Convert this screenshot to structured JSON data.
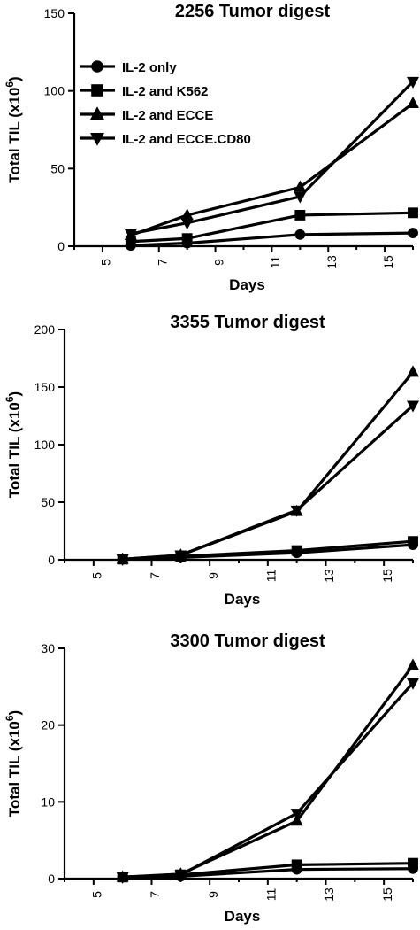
{
  "chart_data": [
    {
      "type": "line",
      "title": "2256 Tumor digest",
      "xlabel": "Days",
      "ylabel": "Total TIL (x10",
      "ylabel_superscript": "6",
      "ylabel_suffix": ")",
      "xlim": [
        4,
        16
      ],
      "ylim": [
        0,
        150
      ],
      "xticks": [
        5,
        7,
        9,
        11,
        13,
        15
      ],
      "yticks": [
        0,
        50,
        100,
        150
      ],
      "legend": "top-left",
      "series": [
        {
          "name": "IL-2 only",
          "marker": "circle",
          "x": [
            6,
            8,
            12,
            16
          ],
          "y": [
            0.5,
            2,
            7.5,
            8.5
          ]
        },
        {
          "name": "IL-2 and K562",
          "marker": "square",
          "x": [
            6,
            8,
            12,
            16
          ],
          "y": [
            3,
            5,
            20,
            21.5
          ]
        },
        {
          "name": "IL-2 and ECCE",
          "marker": "triangle-up",
          "x": [
            6,
            8,
            12,
            16
          ],
          "y": [
            7,
            20,
            38,
            92
          ]
        },
        {
          "name": "IL-2 and ECCE.CD80",
          "marker": "triangle-down",
          "x": [
            6,
            8,
            12,
            16
          ],
          "y": [
            8,
            15,
            32,
            106
          ]
        }
      ]
    },
    {
      "type": "line",
      "title": "3355 Tumor digest",
      "xlabel": "Days",
      "ylabel": "Total TIL (x10",
      "ylabel_superscript": "6",
      "ylabel_suffix": ")",
      "xlim": [
        4,
        16
      ],
      "ylim": [
        0,
        200
      ],
      "xticks": [
        5,
        7,
        9,
        11,
        13,
        15
      ],
      "yticks": [
        0,
        50,
        100,
        150,
        200
      ],
      "series": [
        {
          "name": "IL-2 only",
          "marker": "circle",
          "x": [
            6,
            8,
            12,
            16
          ],
          "y": [
            0.5,
            2,
            6,
            13
          ]
        },
        {
          "name": "IL-2 and K562",
          "marker": "square",
          "x": [
            6,
            8,
            12,
            16
          ],
          "y": [
            0.5,
            3,
            8,
            16
          ]
        },
        {
          "name": "IL-2 and ECCE",
          "marker": "triangle-up",
          "x": [
            6,
            8,
            12,
            16
          ],
          "y": [
            0.5,
            4,
            42,
            163
          ]
        },
        {
          "name": "IL-2 and ECCE.CD80",
          "marker": "triangle-down",
          "x": [
            6,
            8,
            12,
            16
          ],
          "y": [
            0.5,
            4,
            43,
            134
          ]
        }
      ]
    },
    {
      "type": "line",
      "title": "3300 Tumor digest",
      "xlabel": "Days",
      "ylabel": "Total TIL (x10",
      "ylabel_superscript": "6",
      "ylabel_suffix": ")",
      "xlim": [
        4,
        16
      ],
      "ylim": [
        0,
        30
      ],
      "xticks": [
        5,
        7,
        9,
        11,
        13,
        15
      ],
      "yticks": [
        0,
        10,
        20,
        30
      ],
      "series": [
        {
          "name": "IL-2 only",
          "marker": "circle",
          "x": [
            6,
            8,
            12,
            16
          ],
          "y": [
            0.2,
            0.3,
            1.2,
            1.3
          ]
        },
        {
          "name": "IL-2 and K562",
          "marker": "square",
          "x": [
            6,
            8,
            12,
            16
          ],
          "y": [
            0.2,
            0.5,
            1.8,
            2.0
          ]
        },
        {
          "name": "IL-2 and ECCE",
          "marker": "triangle-up",
          "x": [
            6,
            8,
            12,
            16
          ],
          "y": [
            0.2,
            0.6,
            7.5,
            27.8
          ]
        },
        {
          "name": "IL-2 and ECCE.CD80",
          "marker": "triangle-down",
          "x": [
            6,
            8,
            12,
            16
          ],
          "y": [
            0.2,
            0.5,
            8.5,
            25.5
          ]
        }
      ]
    }
  ]
}
